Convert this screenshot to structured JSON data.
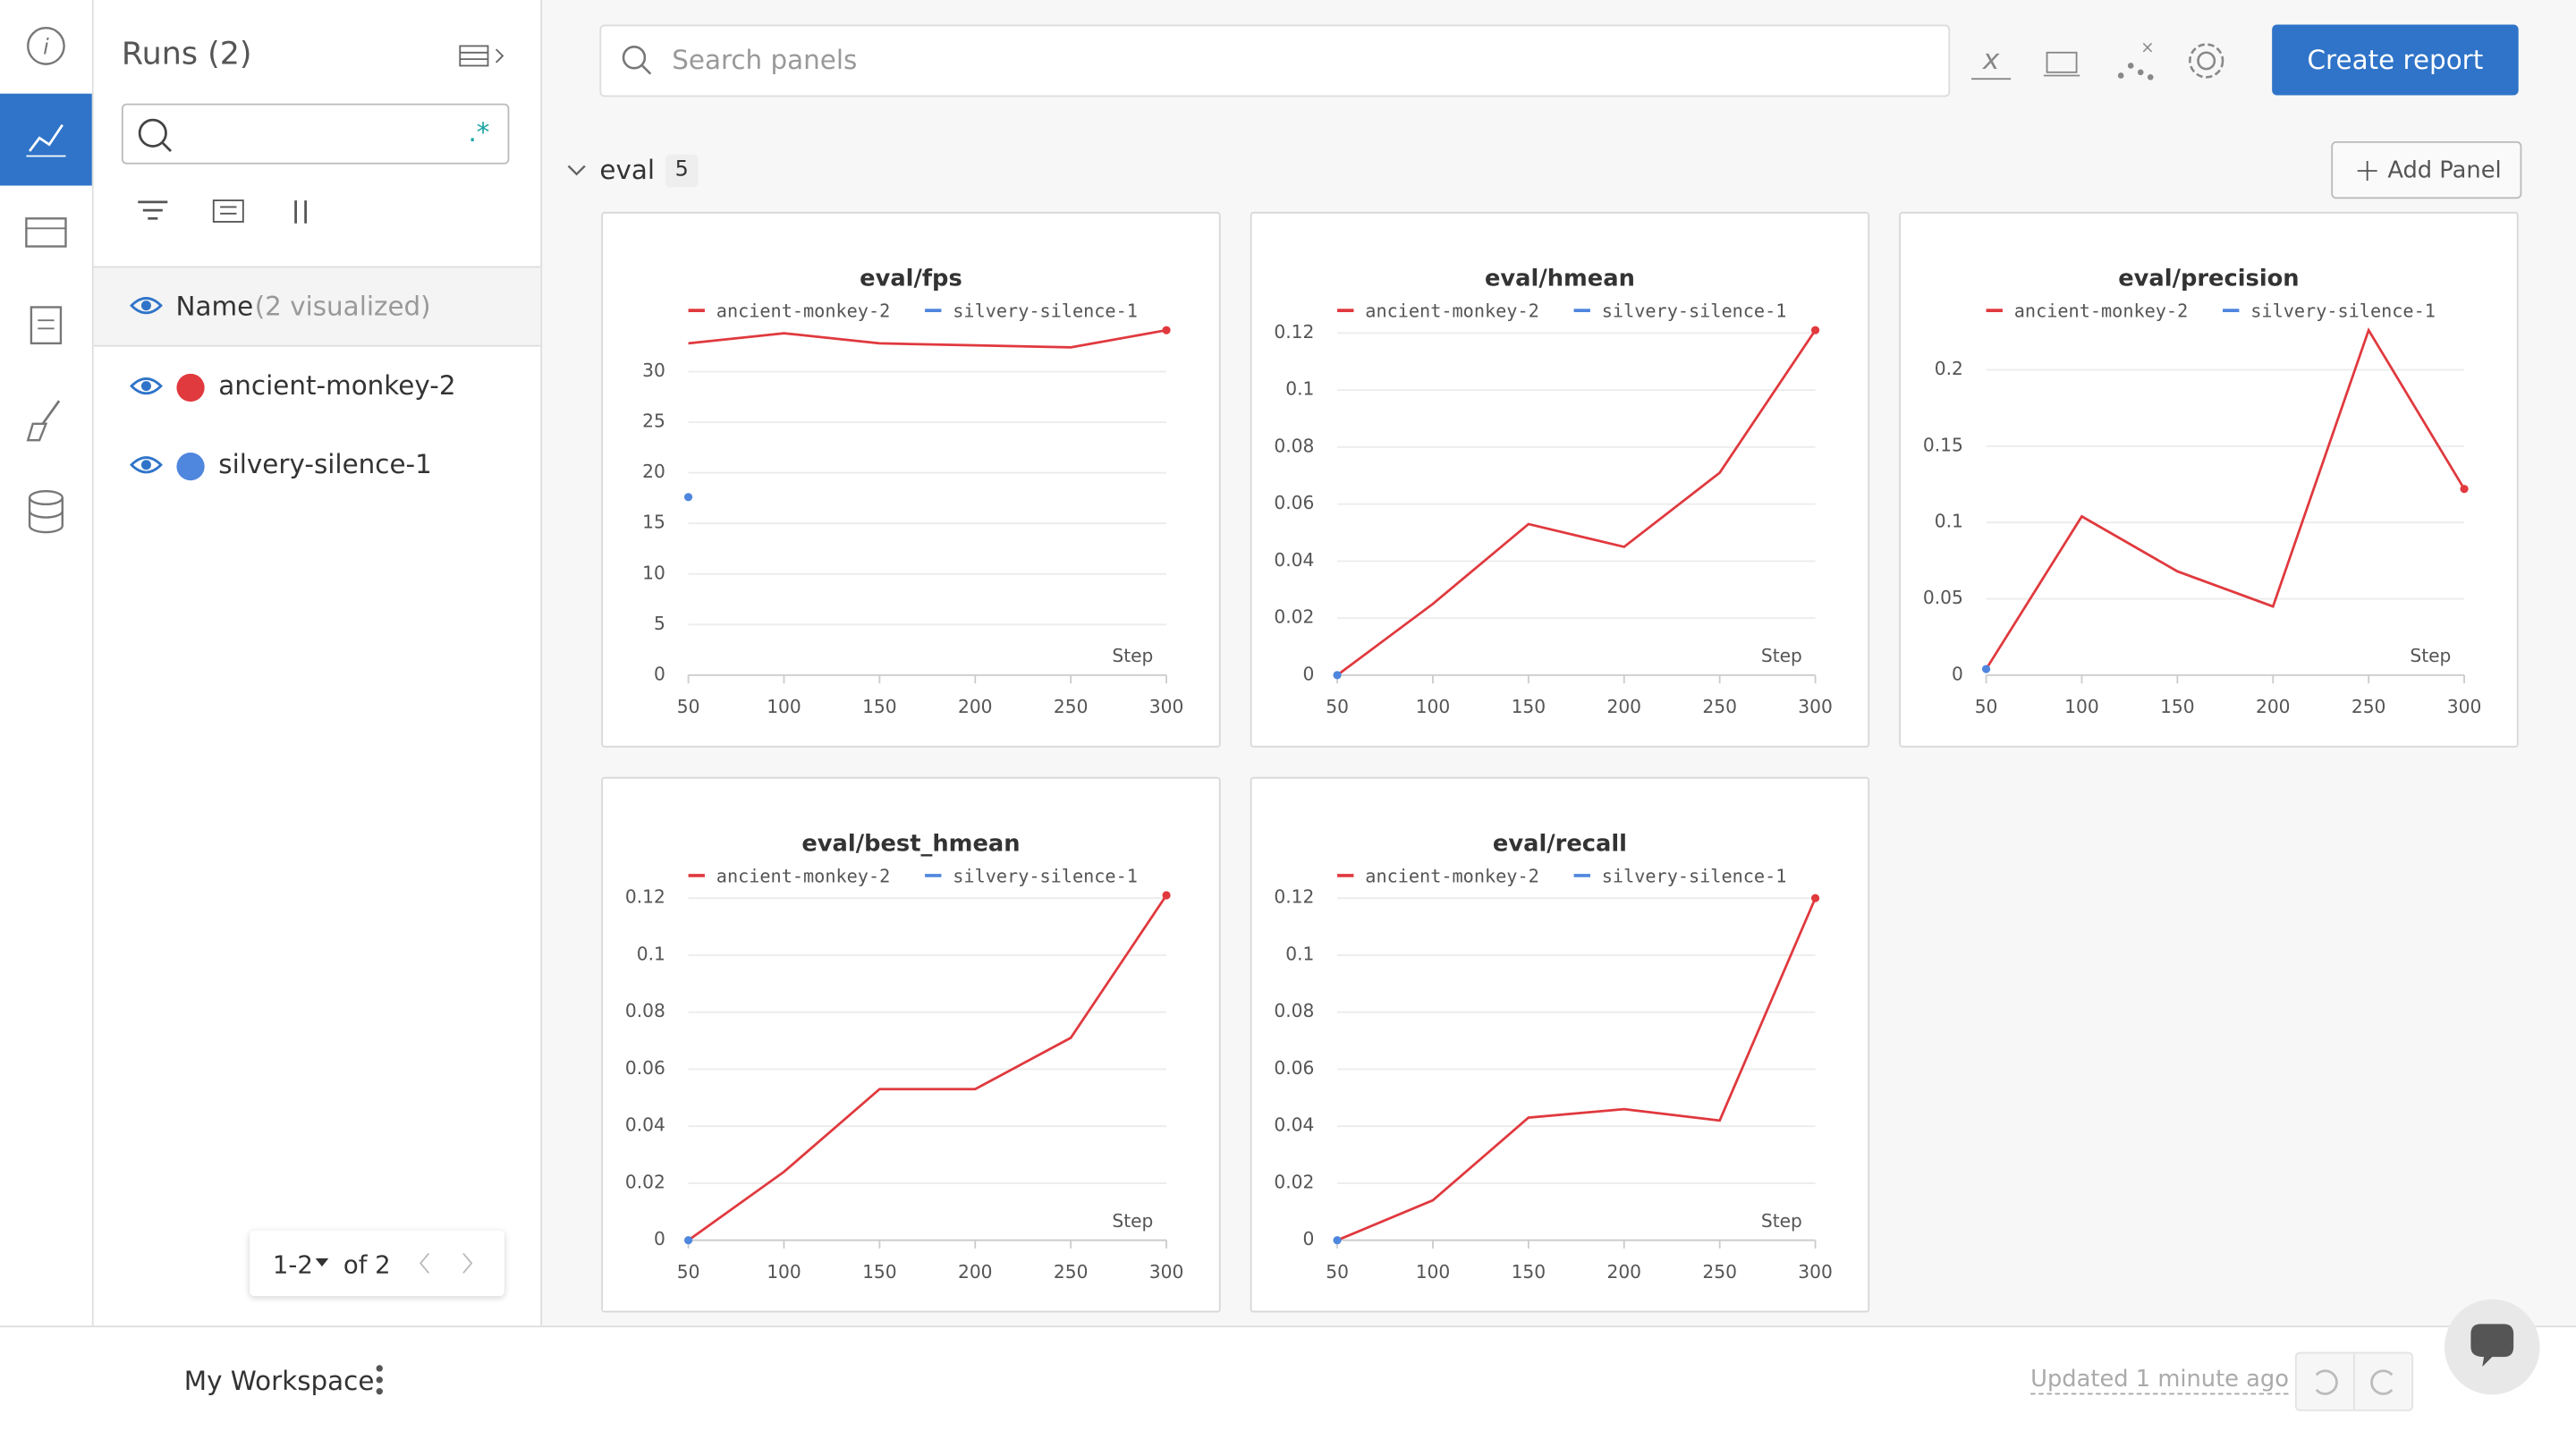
{
  "sidebar": {
    "runs_title": "Runs (2)",
    "column_name": "Name",
    "visualized": "(2 visualized)",
    "runs": [
      {
        "name": "ancient-monkey-2",
        "color": "#e0393e"
      },
      {
        "name": "silvery-silence-1",
        "color": "#4f86de"
      }
    ],
    "pagination": {
      "range": "1-2",
      "total": "of 2"
    }
  },
  "toolbar": {
    "search_placeholder": "Search panels",
    "create_report": "Create report"
  },
  "section": {
    "name": "eval",
    "count": 5,
    "add_panel": "Add Panel"
  },
  "footer": {
    "workspace": "My Workspace",
    "updated": "Updated 1 minute ago"
  },
  "chart_data": [
    {
      "type": "line",
      "title": "eval/fps",
      "x_label": "Step",
      "x": [
        50,
        100,
        150,
        200,
        250,
        300
      ],
      "series": [
        {
          "name": "ancient-monkey-2",
          "color": "#e0393e",
          "values": [
            32.8,
            33.8,
            32.8,
            32.6,
            32.4,
            34.1
          ]
        },
        {
          "name": "silvery-silence-1",
          "color": "#4f86de",
          "values": [
            17.6,
            null,
            null,
            null,
            null,
            null
          ]
        }
      ],
      "xlim": [
        50,
        300
      ],
      "xticks": [
        50,
        100,
        150,
        200,
        250,
        300
      ],
      "ylim": [
        0,
        34.1
      ],
      "yticks": [
        0,
        5,
        10,
        15,
        20,
        25,
        30
      ],
      "grid": true
    },
    {
      "type": "line",
      "title": "eval/hmean",
      "x_label": "Step",
      "x": [
        50,
        100,
        150,
        200,
        250,
        300
      ],
      "series": [
        {
          "name": "ancient-monkey-2",
          "color": "#e0393e",
          "values": [
            0,
            0.025,
            0.053,
            0.045,
            0.071,
            0.121
          ]
        },
        {
          "name": "silvery-silence-1",
          "color": "#4f86de",
          "values": [
            0,
            null,
            null,
            null,
            null,
            null
          ]
        }
      ],
      "xlim": [
        50,
        300
      ],
      "xticks": [
        50,
        100,
        150,
        200,
        250,
        300
      ],
      "ylim": [
        0,
        0.121
      ],
      "yticks": [
        0,
        0.02,
        0.04,
        0.06,
        0.08,
        0.1,
        0.12
      ],
      "grid": true
    },
    {
      "type": "line",
      "title": "eval/precision",
      "x_label": "Step",
      "x": [
        50,
        100,
        150,
        200,
        250,
        300
      ],
      "series": [
        {
          "name": "ancient-monkey-2",
          "color": "#e0393e",
          "values": [
            0.004,
            0.104,
            0.068,
            0.045,
            0.226,
            0.122
          ]
        },
        {
          "name": "silvery-silence-1",
          "color": "#4f86de",
          "values": [
            0.004,
            null,
            null,
            null,
            null,
            null
          ]
        }
      ],
      "xlim": [
        50,
        300
      ],
      "xticks": [
        50,
        100,
        150,
        200,
        250,
        300
      ],
      "ylim": [
        0,
        0.226
      ],
      "yticks": [
        0,
        0.05,
        0.1,
        0.15,
        0.2
      ],
      "grid": true
    },
    {
      "type": "line",
      "title": "eval/best_hmean",
      "x_label": "Step",
      "x": [
        50,
        100,
        150,
        200,
        250,
        300
      ],
      "series": [
        {
          "name": "ancient-monkey-2",
          "color": "#e0393e",
          "values": [
            0,
            0.024,
            0.053,
            0.053,
            0.071,
            0.121
          ]
        },
        {
          "name": "silvery-silence-1",
          "color": "#4f86de",
          "values": [
            0,
            null,
            null,
            null,
            null,
            null
          ]
        }
      ],
      "xlim": [
        50,
        300
      ],
      "xticks": [
        50,
        100,
        150,
        200,
        250,
        300
      ],
      "ylim": [
        0,
        0.121
      ],
      "yticks": [
        0,
        0.02,
        0.04,
        0.06,
        0.08,
        0.1,
        0.12
      ],
      "grid": true
    },
    {
      "type": "line",
      "title": "eval/recall",
      "x_label": "Step",
      "x": [
        50,
        100,
        150,
        200,
        250,
        300
      ],
      "series": [
        {
          "name": "ancient-monkey-2",
          "color": "#e0393e",
          "values": [
            0,
            0.014,
            0.043,
            0.046,
            0.042,
            0.12
          ]
        },
        {
          "name": "silvery-silence-1",
          "color": "#4f86de",
          "values": [
            0,
            null,
            null,
            null,
            null,
            null
          ]
        }
      ],
      "xlim": [
        50,
        300
      ],
      "xticks": [
        50,
        100,
        150,
        200,
        250,
        300
      ],
      "ylim": [
        0,
        0.121
      ],
      "yticks": [
        0,
        0.02,
        0.04,
        0.06,
        0.08,
        0.1,
        0.12
      ],
      "grid": true
    }
  ]
}
